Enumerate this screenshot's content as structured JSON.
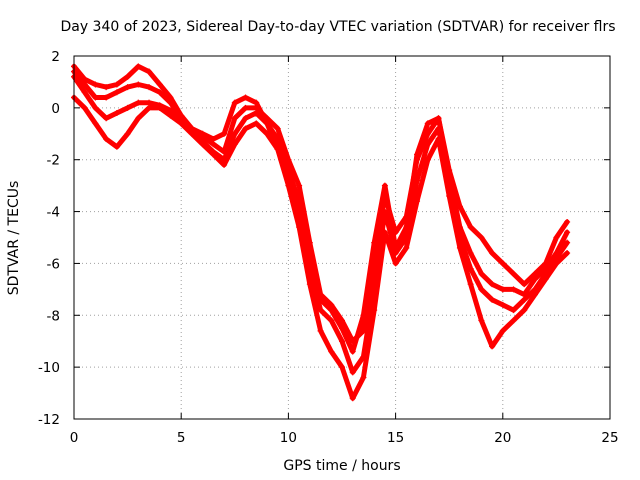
{
  "chart_data": {
    "type": "scatter",
    "title": "Day 340 of 2023, Sidereal Day-to-day VTEC variation (SDTVAR) for receiver flrs",
    "xlabel": "GPS time / hours",
    "ylabel": "SDTVAR / TECUs",
    "xlim": [
      0,
      25
    ],
    "ylim": [
      -12,
      2
    ],
    "xticks": [
      0,
      5,
      10,
      15,
      20,
      25
    ],
    "yticks": [
      -12,
      -10,
      -8,
      -6,
      -4,
      -2,
      0,
      2
    ],
    "grid": true,
    "marker": "+",
    "color": "#ff0000",
    "series": [
      {
        "x": [
          0,
          0.5,
          1,
          1.5,
          2,
          2.5,
          3,
          3.5,
          4,
          4.5,
          5,
          5.5,
          6,
          6.5,
          7,
          7.5,
          8,
          8.5,
          9,
          9.5,
          10,
          10.5,
          11,
          11.5,
          12,
          12.5,
          13,
          13.5,
          14,
          14.5,
          15,
          15.5,
          16,
          16.5,
          17,
          17.5,
          18,
          18.5,
          19,
          19.5,
          20,
          20.5,
          21,
          21.5,
          22,
          22.5,
          23
        ],
        "y": [
          1.6,
          1.1,
          0.9,
          0.8,
          0.9,
          1.2,
          1.6,
          1.4,
          0.9,
          0.4,
          -0.3,
          -0.8,
          -1.0,
          -1.2,
          -1.0,
          0.2,
          0.4,
          0.2,
          -0.6,
          -1.6,
          -2.4,
          -3.6,
          -5.6,
          -7.4,
          -7.8,
          -8.5,
          -9.4,
          -8.0,
          -5.2,
          -3.0,
          -5.4,
          -4.6,
          -1.8,
          -0.6,
          -0.4,
          -2.4,
          -3.8,
          -4.6,
          -5.0,
          -5.6,
          -6.0,
          -6.4,
          -6.8,
          -6.4,
          -6.0,
          -5.0,
          -4.4
        ]
      },
      {
        "x": [
          0,
          0.5,
          1,
          1.5,
          2,
          2.5,
          3,
          3.5,
          4,
          4.5,
          5,
          5.5,
          6,
          6.5,
          7,
          7.5,
          8,
          8.5,
          9,
          9.5,
          10,
          10.5,
          11,
          11.5,
          12,
          12.5,
          13,
          13.5,
          14,
          14.5,
          15,
          15.5,
          16,
          16.5,
          17,
          17.5,
          18,
          18.5,
          19,
          19.5,
          20,
          20.5,
          21,
          21.5,
          22,
          22.5,
          23
        ],
        "y": [
          1.4,
          0.9,
          0.4,
          0.4,
          0.6,
          0.8,
          0.9,
          0.8,
          0.6,
          0.2,
          -0.4,
          -0.8,
          -1.1,
          -1.4,
          -1.7,
          -0.4,
          0.0,
          0.0,
          -0.4,
          -0.8,
          -2.0,
          -3.0,
          -5.2,
          -7.2,
          -7.6,
          -8.2,
          -9.0,
          -8.6,
          -6.0,
          -3.4,
          -4.8,
          -4.2,
          -2.0,
          -1.0,
          -0.4,
          -2.6,
          -4.6,
          -5.6,
          -6.4,
          -6.8,
          -7.0,
          -7.0,
          -7.2,
          -6.6,
          -6.2,
          -5.6,
          -4.8
        ]
      },
      {
        "x": [
          0,
          0.5,
          1,
          1.5,
          2,
          2.5,
          3,
          3.5,
          4,
          4.5,
          5,
          5.5,
          6,
          6.5,
          7,
          7.5,
          8,
          8.5,
          9,
          9.5,
          10,
          10.5,
          11,
          11.5,
          12,
          12.5,
          13,
          13.5,
          14,
          14.5,
          15,
          15.5,
          16,
          16.5,
          17,
          17.5,
          18,
          18.5,
          19,
          19.5,
          20,
          20.5,
          21,
          21.5,
          22,
          22.5,
          23
        ],
        "y": [
          1.2,
          0.6,
          0.0,
          -0.4,
          -0.2,
          0.0,
          0.2,
          0.2,
          0.1,
          -0.1,
          -0.5,
          -0.9,
          -1.3,
          -1.7,
          -2.0,
          -1.0,
          -0.4,
          -0.2,
          -0.6,
          -1.2,
          -2.6,
          -4.2,
          -6.2,
          -7.8,
          -8.2,
          -9.0,
          -10.2,
          -9.6,
          -7.0,
          -4.0,
          -5.6,
          -5.0,
          -2.8,
          -1.4,
          -0.8,
          -3.0,
          -5.0,
          -6.2,
          -7.0,
          -7.4,
          -7.6,
          -7.8,
          -7.4,
          -7.0,
          -6.4,
          -5.8,
          -5.2
        ]
      },
      {
        "x": [
          0,
          0.5,
          1,
          1.5,
          2,
          2.5,
          3,
          3.5,
          4,
          4.5,
          5,
          5.5,
          6,
          6.5,
          7,
          7.5,
          8,
          8.5,
          9,
          9.5,
          10,
          10.5,
          11,
          11.5,
          12,
          12.5,
          13,
          13.5,
          14,
          14.5,
          15,
          15.5,
          16,
          16.5,
          17,
          17.5,
          18,
          18.5,
          19,
          19.5,
          20,
          20.5,
          21,
          21.5,
          22,
          22.5,
          23
        ],
        "y": [
          0.4,
          0.0,
          -0.6,
          -1.2,
          -1.5,
          -1.0,
          -0.4,
          0.0,
          0.0,
          -0.3,
          -0.6,
          -1.0,
          -1.4,
          -1.8,
          -2.2,
          -1.4,
          -0.8,
          -0.6,
          -1.0,
          -1.6,
          -3.0,
          -4.6,
          -6.8,
          -8.6,
          -9.4,
          -10.0,
          -11.2,
          -10.4,
          -7.8,
          -4.8,
          -6.0,
          -5.4,
          -3.6,
          -2.0,
          -1.2,
          -3.4,
          -5.4,
          -6.8,
          -8.2,
          -9.2,
          -8.6,
          -8.2,
          -7.8,
          -7.2,
          -6.6,
          -6.0,
          -5.6
        ]
      }
    ]
  }
}
